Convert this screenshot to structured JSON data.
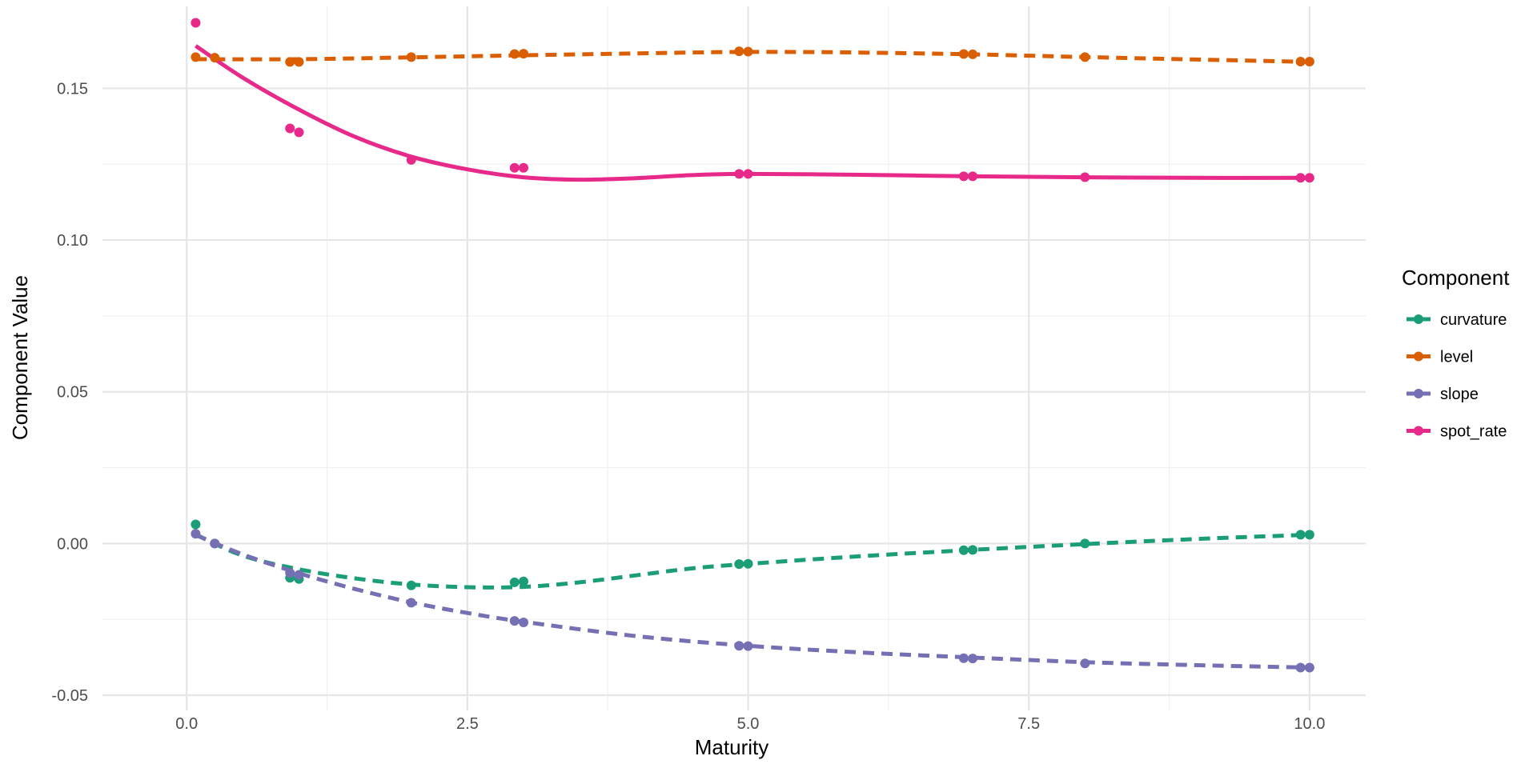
{
  "chart_data": {
    "type": "line",
    "title": "",
    "xlabel": "Maturity",
    "ylabel": "Component Value",
    "xlim": [
      -0.75,
      10.5
    ],
    "ylim": [
      -0.055,
      0.177
    ],
    "x_ticks": [
      0.0,
      2.5,
      5.0,
      7.5,
      10.0
    ],
    "x_tick_labels": [
      "0.0",
      "2.5",
      "5.0",
      "7.5",
      "10.0"
    ],
    "y_ticks": [
      -0.05,
      0.0,
      0.05,
      0.1,
      0.15
    ],
    "y_tick_labels": [
      "-0.05",
      "0.00",
      "0.05",
      "0.10",
      "0.15"
    ],
    "grid": true,
    "legend": {
      "title": "Component",
      "position": "right"
    },
    "series": [
      {
        "name": "curvature",
        "color": "#1b9e77",
        "line_style": "dashed",
        "points": [
          [
            0.08,
            0.0063
          ],
          [
            0.25,
            0.0
          ],
          [
            0.92,
            -0.0113
          ],
          [
            1.0,
            -0.0117
          ],
          [
            2.0,
            -0.0138
          ],
          [
            2.92,
            -0.0128
          ],
          [
            3.0,
            -0.0125
          ],
          [
            4.92,
            -0.0068
          ],
          [
            5.0,
            -0.0067
          ],
          [
            6.92,
            -0.0022
          ],
          [
            7.0,
            -0.0021
          ],
          [
            8.0,
            0.0
          ],
          [
            9.92,
            0.0029
          ],
          [
            10.0,
            0.0029
          ]
        ],
        "curve": [
          [
            0.08,
            0.003
          ],
          [
            0.5,
            -0.004
          ],
          [
            1.0,
            -0.0085
          ],
          [
            1.5,
            -0.0115
          ],
          [
            2.0,
            -0.0135
          ],
          [
            2.5,
            -0.0144
          ],
          [
            3.0,
            -0.0143
          ],
          [
            3.5,
            -0.0128
          ],
          [
            4.0,
            -0.0105
          ],
          [
            4.5,
            -0.0082
          ],
          [
            5.0,
            -0.0067
          ],
          [
            6.0,
            -0.0042
          ],
          [
            7.0,
            -0.0021
          ],
          [
            8.0,
            -0.0002
          ],
          [
            9.0,
            0.0015
          ],
          [
            10.0,
            0.0029
          ]
        ]
      },
      {
        "name": "level",
        "color": "#d95f02",
        "line_style": "dashed",
        "points": [
          [
            0.08,
            0.1603
          ],
          [
            0.25,
            0.1601
          ],
          [
            0.92,
            0.1587
          ],
          [
            1.0,
            0.1587
          ],
          [
            2.0,
            0.1603
          ],
          [
            2.92,
            0.1613
          ],
          [
            3.0,
            0.1614
          ],
          [
            4.92,
            0.1622
          ],
          [
            5.0,
            0.1621
          ],
          [
            6.92,
            0.1613
          ],
          [
            7.0,
            0.1612
          ],
          [
            8.0,
            0.1603
          ],
          [
            9.92,
            0.1588
          ],
          [
            10.0,
            0.1588
          ]
        ],
        "curve": [
          [
            0.08,
            0.1596
          ],
          [
            1.0,
            0.1596
          ],
          [
            2.0,
            0.1602
          ],
          [
            3.0,
            0.1609
          ],
          [
            4.0,
            0.1615
          ],
          [
            5.0,
            0.162
          ],
          [
            6.0,
            0.1618
          ],
          [
            7.0,
            0.1612
          ],
          [
            8.0,
            0.1603
          ],
          [
            9.0,
            0.1595
          ],
          [
            10.0,
            0.1587
          ]
        ]
      },
      {
        "name": "slope",
        "color": "#7570b3",
        "line_style": "dashed",
        "points": [
          [
            0.08,
            0.0032
          ],
          [
            0.25,
            0.0
          ],
          [
            0.92,
            -0.0097
          ],
          [
            1.0,
            -0.0103
          ],
          [
            2.0,
            -0.0195
          ],
          [
            2.92,
            -0.0255
          ],
          [
            3.0,
            -0.026
          ],
          [
            4.92,
            -0.0337
          ],
          [
            5.0,
            -0.0338
          ],
          [
            6.92,
            -0.0378
          ],
          [
            7.0,
            -0.0379
          ],
          [
            8.0,
            -0.0395
          ],
          [
            9.92,
            -0.0409
          ],
          [
            10.0,
            -0.0409
          ]
        ],
        "curve": [
          [
            0.08,
            0.0028
          ],
          [
            0.5,
            -0.0036
          ],
          [
            1.0,
            -0.0098
          ],
          [
            1.5,
            -0.015
          ],
          [
            2.0,
            -0.0194
          ],
          [
            2.5,
            -0.0229
          ],
          [
            3.0,
            -0.0258
          ],
          [
            4.0,
            -0.0305
          ],
          [
            5.0,
            -0.0337
          ],
          [
            6.0,
            -0.0359
          ],
          [
            7.0,
            -0.0376
          ],
          [
            8.0,
            -0.0391
          ],
          [
            9.0,
            -0.0401
          ],
          [
            10.0,
            -0.0409
          ]
        ]
      },
      {
        "name": "spot_rate",
        "color": "#e7298a",
        "line_style": "solid",
        "points": [
          [
            0.08,
            0.1716
          ],
          [
            0.92,
            0.1368
          ],
          [
            1.0,
            0.1355
          ],
          [
            2.0,
            0.1264
          ],
          [
            2.92,
            0.1238
          ],
          [
            3.0,
            0.1238
          ],
          [
            4.92,
            0.1218
          ],
          [
            5.0,
            0.1218
          ],
          [
            6.92,
            0.121
          ],
          [
            7.0,
            0.121
          ],
          [
            8.0,
            0.1207
          ],
          [
            9.92,
            0.1205
          ],
          [
            10.0,
            0.1205
          ]
        ],
        "curve": [
          [
            0.08,
            0.164
          ],
          [
            0.5,
            0.1535
          ],
          [
            1.0,
            0.143
          ],
          [
            1.5,
            0.134
          ],
          [
            2.0,
            0.1275
          ],
          [
            2.5,
            0.1233
          ],
          [
            3.0,
            0.1207
          ],
          [
            3.5,
            0.1199
          ],
          [
            4.0,
            0.1204
          ],
          [
            4.5,
            0.1214
          ],
          [
            5.0,
            0.1218
          ],
          [
            6.0,
            0.1215
          ],
          [
            7.0,
            0.121
          ],
          [
            8.0,
            0.1207
          ],
          [
            9.0,
            0.1205
          ],
          [
            10.0,
            0.1205
          ]
        ]
      }
    ]
  }
}
